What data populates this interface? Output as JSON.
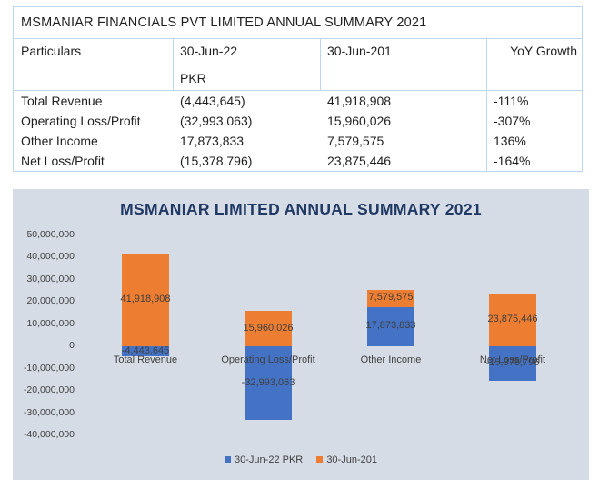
{
  "table": {
    "title": "MSMANIAR FINANCIALS PVT LIMITED ANNUAL SUMMARY 2021",
    "header": {
      "particulars": "Particulars",
      "col1": "30-Jun-22",
      "col2": "30-Jun-201",
      "col3": "YoY Growth",
      "currency": "PKR"
    },
    "rows": [
      {
        "label": "Total Revenue",
        "v1": "(4,443,645)",
        "v2": "41,918,908",
        "growth": "-111%"
      },
      {
        "label": "Operating Loss/Profit",
        "v1": "(32,993,063)",
        "v2": "15,960,026",
        "growth": "-307%"
      },
      {
        "label": "Other Income",
        "v1": "17,873,833",
        "v2": "7,579,575",
        "growth": "136%"
      },
      {
        "label": "Net Loss/Profit",
        "v1": "(15,378,796)",
        "v2": "23,875,446",
        "growth": "-164%"
      }
    ]
  },
  "chart_data": {
    "type": "bar",
    "stacked": true,
    "title": "MSMANIAR LIMITED ANNUAL SUMMARY 2021",
    "categories": [
      "Total Revenue",
      "Operating Loss/Profit",
      "Other Income",
      "Net Loss/Profit"
    ],
    "series": [
      {
        "name": "30-Jun-22 PKR",
        "color": "#4472c4",
        "values": [
          -4443645,
          -32993063,
          17873833,
          -15378796
        ],
        "labels": [
          "-4,443,645",
          "-32,993,063",
          "17,873,833",
          "-15,378,796"
        ]
      },
      {
        "name": "30-Jun-201",
        "color": "#ed7d31",
        "values": [
          41918908,
          15960026,
          7579575,
          23875446
        ],
        "labels": [
          "41,918,908",
          "15,960,026",
          "7,579,575",
          "23,875,446"
        ]
      }
    ],
    "ylim": [
      -40000000,
      50000000
    ],
    "yticks": [
      "50,000,000",
      "40,000,000",
      "30,000,000",
      "20,000,000",
      "10,000,000",
      "0",
      "-10,000,000",
      "-20,000,000",
      "-30,000,000",
      "-40,000,000"
    ],
    "legend": "bottom",
    "grid": false
  }
}
